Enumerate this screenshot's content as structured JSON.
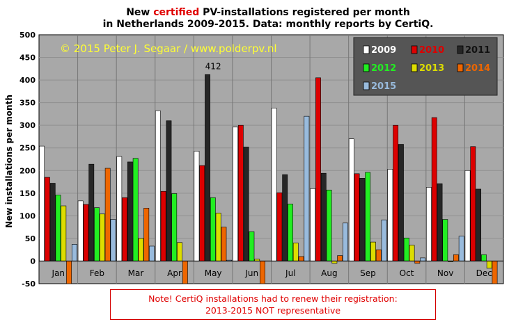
{
  "chart_data": {
    "type": "bar",
    "title_parts": [
      "New ",
      "certified",
      " PV-installations  registered per month"
    ],
    "title_line2": "in Netherlands  2009-2015. Data: monthly reports by CertiQ.",
    "ylabel": "New installations per month",
    "copyright": "© 2015 Peter J. Segaar / www.polderpv.nl",
    "ylim": [
      -50,
      500
    ],
    "yticks": [
      "-50",
      "0",
      "50",
      "100",
      "150",
      "200",
      "250",
      "300",
      "350",
      "400",
      "450",
      "500"
    ],
    "categories": [
      "Jan",
      "Feb",
      "Mar",
      "Apr",
      "May",
      "Jun",
      "Jul",
      "Aug",
      "Sep",
      "Oct",
      "Nov",
      "Dec"
    ],
    "legend_placement": "top-right",
    "series": [
      {
        "name": "2009",
        "color": "#ffffff",
        "values": [
          254,
          133,
          231,
          332,
          243,
          296,
          338,
          160,
          270,
          203,
          163,
          200
        ]
      },
      {
        "name": "2010",
        "color": "#dd0000",
        "values": [
          185,
          125,
          140,
          154,
          211,
          300,
          151,
          405,
          193,
          300,
          317,
          253
        ]
      },
      {
        "name": "2011",
        "color": "#262626",
        "values": [
          172,
          214,
          219,
          310,
          412,
          252,
          191,
          194,
          183,
          258,
          171,
          159
        ]
      },
      {
        "name": "2012",
        "color": "#22ee22",
        "values": [
          146,
          118,
          227,
          149,
          140,
          65,
          126,
          157,
          196,
          51,
          92,
          14
        ]
      },
      {
        "name": "2013",
        "color": "#dddd00",
        "values": [
          122,
          104,
          50,
          41,
          106,
          4,
          40,
          -5,
          42,
          35,
          0,
          -16
        ]
      },
      {
        "name": "2014",
        "color": "#ee6600",
        "values": [
          -50,
          205,
          117,
          -50,
          75,
          -50,
          10,
          12,
          25,
          -5,
          14,
          -50
        ]
      },
      {
        "name": "2015",
        "color": "#99bbdd",
        "values": [
          37,
          92,
          33,
          null,
          2,
          null,
          320,
          84,
          91,
          7,
          55,
          null
        ]
      }
    ],
    "annotations": [
      {
        "text": "412",
        "category": "May",
        "value": 412
      }
    ]
  },
  "note": {
    "line1": "Note! CertiQ installations  had to renew  their registration:",
    "line2": "2013-2015  NOT representative"
  }
}
